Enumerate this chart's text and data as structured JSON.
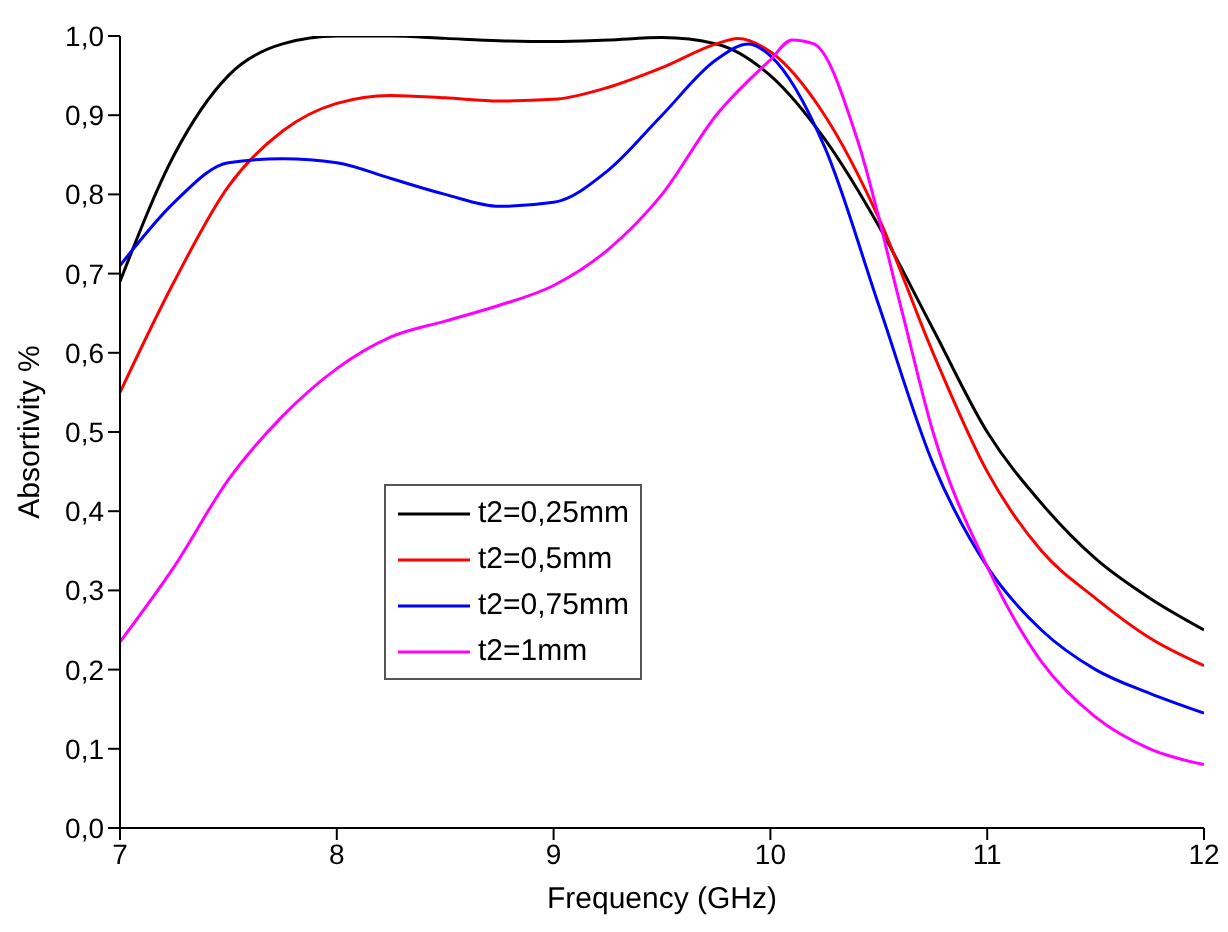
{
  "chart_data": {
    "type": "line",
    "xlabel": "Frequency (GHz)",
    "ylabel": "Absortivity %",
    "xlim": [
      7,
      12
    ],
    "xticks": [
      7,
      8,
      9,
      10,
      11,
      12
    ],
    "ylim": [
      0,
      1
    ],
    "yticks": [
      {
        "value": 0,
        "label": "0,0"
      },
      {
        "value": 0.1,
        "label": "0,1"
      },
      {
        "value": 0.2,
        "label": "0,2"
      },
      {
        "value": 0.3,
        "label": "0,3"
      },
      {
        "value": 0.4,
        "label": "0,4"
      },
      {
        "value": 0.5,
        "label": "0,5"
      },
      {
        "value": 0.6,
        "label": "0,6"
      },
      {
        "value": 0.7,
        "label": "0,7"
      },
      {
        "value": 0.8,
        "label": "0,8"
      },
      {
        "value": 0.9,
        "label": "0,9"
      },
      {
        "value": 1,
        "label": "1,0"
      }
    ],
    "grid": false,
    "legend": "bottom left",
    "marker": "none",
    "line_style": "solid",
    "series": [
      {
        "name": "t2=0,25mm",
        "color": "#000000",
        "x": [
          7,
          7.25,
          7.5,
          7.75,
          8,
          8.25,
          8.5,
          8.75,
          9,
          9.25,
          9.5,
          9.75,
          10,
          10.25,
          10.5,
          10.75,
          11,
          11.25,
          11.5,
          11.75,
          12
        ],
        "values": [
          0.69,
          0.85,
          0.95,
          0.99,
          1.0,
          1.0,
          0.997,
          0.994,
          0.993,
          0.995,
          0.998,
          0.99,
          0.95,
          0.87,
          0.76,
          0.63,
          0.5,
          0.41,
          0.34,
          0.29,
          0.25
        ]
      },
      {
        "name": "t2=0,5mm",
        "color": "#ff0000",
        "x": [
          7,
          7.25,
          7.5,
          7.75,
          8,
          8.25,
          8.5,
          8.75,
          9,
          9.25,
          9.5,
          9.75,
          9.85,
          10,
          10.25,
          10.5,
          10.75,
          11,
          11.25,
          11.5,
          11.75,
          12
        ],
        "values": [
          0.55,
          0.69,
          0.81,
          0.88,
          0.915,
          0.925,
          0.922,
          0.918,
          0.92,
          0.935,
          0.96,
          0.99,
          0.997,
          0.98,
          0.9,
          0.77,
          0.6,
          0.45,
          0.35,
          0.29,
          0.24,
          0.205
        ]
      },
      {
        "name": "t2=0,75mm",
        "color": "#0000ff",
        "x": [
          7,
          7.25,
          7.5,
          7.75,
          8,
          8.25,
          8.5,
          8.75,
          9,
          9.25,
          9.5,
          9.75,
          9.9,
          10,
          10.25,
          10.5,
          10.75,
          11,
          11.25,
          11.5,
          11.75,
          12
        ],
        "values": [
          0.71,
          0.79,
          0.84,
          0.845,
          0.84,
          0.82,
          0.8,
          0.785,
          0.79,
          0.83,
          0.9,
          0.97,
          0.99,
          0.975,
          0.86,
          0.66,
          0.46,
          0.33,
          0.25,
          0.2,
          0.17,
          0.145
        ]
      },
      {
        "name": "t2=1mm",
        "color": "#ff00ff",
        "x": [
          7,
          7.25,
          7.5,
          7.75,
          8,
          8.25,
          8.5,
          8.75,
          9,
          9.25,
          9.5,
          9.75,
          10,
          10.1,
          10.2,
          10.4,
          10.6,
          10.75,
          11,
          11.25,
          11.5,
          11.75,
          12
        ],
        "values": [
          0.235,
          0.33,
          0.44,
          0.52,
          0.58,
          0.62,
          0.64,
          0.66,
          0.685,
          0.73,
          0.8,
          0.9,
          0.97,
          0.995,
          0.99,
          0.87,
          0.66,
          0.5,
          0.33,
          0.21,
          0.14,
          0.1,
          0.08
        ]
      }
    ]
  }
}
